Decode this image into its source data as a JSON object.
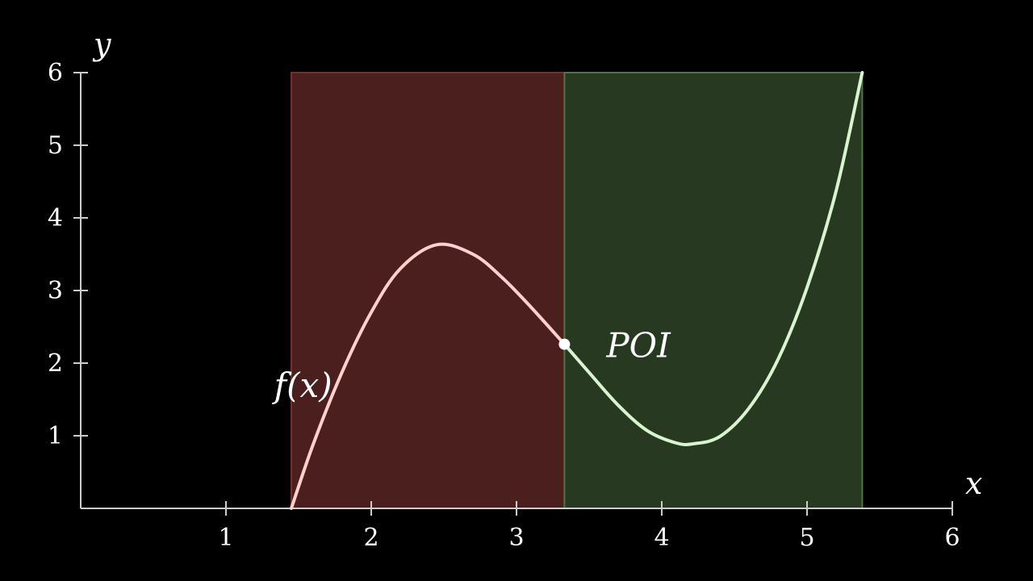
{
  "chart_data": {
    "type": "line",
    "title": "",
    "xlabel": "x",
    "ylabel": "y",
    "xlim": [
      0,
      6
    ],
    "ylim": [
      0,
      6
    ],
    "x_ticks": [
      1,
      2,
      3,
      4,
      5,
      6
    ],
    "y_ticks": [
      1,
      2,
      3,
      4,
      5,
      6
    ],
    "x_tick_labels": [
      "1",
      "2",
      "3",
      "4",
      "5",
      "6"
    ],
    "y_tick_labels": [
      "1",
      "2",
      "3",
      "4",
      "5",
      "6"
    ],
    "grid": false,
    "series": [
      {
        "name": "f(x)",
        "x": [
          1.45,
          1.6,
          1.8,
          2.0,
          2.2,
          2.45,
          2.7,
          2.9,
          3.1,
          3.33,
          3.5,
          3.7,
          3.9,
          4.1,
          4.22,
          4.4,
          4.6,
          4.8,
          5.0,
          5.2,
          5.38
        ],
        "y": [
          0.0,
          0.88,
          1.88,
          2.7,
          3.3,
          3.63,
          3.5,
          3.18,
          2.77,
          2.26,
          1.87,
          1.42,
          1.07,
          0.9,
          0.89,
          0.99,
          1.38,
          2.05,
          3.04,
          4.37,
          6.0
        ]
      }
    ],
    "regions": [
      {
        "x_range": [
          1.45,
          3.33
        ],
        "y_range": [
          0,
          6
        ],
        "color": "#4b1f1d",
        "edge": "#7a2e2b",
        "curve_color": "#ffd0cc"
      },
      {
        "x_range": [
          3.33,
          5.38
        ],
        "y_range": [
          0,
          6
        ],
        "color": "#273a21",
        "edge": "#4f7446",
        "curve_color": "#d9f5cf"
      }
    ],
    "point": {
      "x": 3.33,
      "y": 2.26,
      "label": "POI"
    },
    "annotations": [
      {
        "text": "f(x)",
        "x": 1.22,
        "y": 1.7
      }
    ]
  },
  "colors": {
    "background": "#000000",
    "axis": "#cccccc",
    "text": "#ffffff",
    "point": "#ffffff"
  }
}
